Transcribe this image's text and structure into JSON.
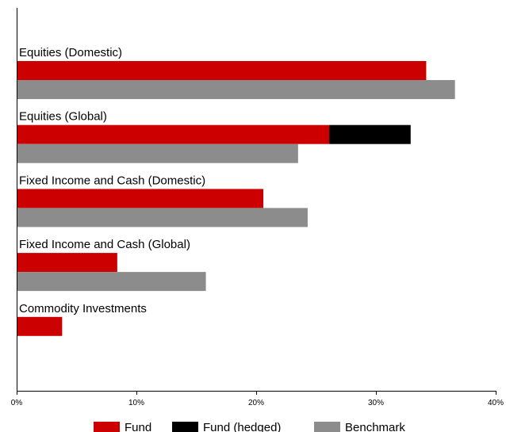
{
  "chart_data": {
    "type": "bar",
    "orientation": "horizontal",
    "stacked": true,
    "title": "",
    "xlabel": "",
    "ylabel": "",
    "xlim": [
      0,
      40
    ],
    "tick_values": [
      0,
      10,
      20,
      30,
      40
    ],
    "tick_labels": [
      "0%",
      "10%",
      "20%",
      "30%",
      "40%"
    ],
    "grid": false,
    "legend_position": "bottom",
    "categories": [
      "Equities (Domestic)",
      "Equities (Global)",
      "Fixed Income and Cash (Domestic)",
      "Fixed Income and Cash (Global)",
      "Commodity Investments"
    ],
    "series": [
      {
        "name": "Fund",
        "color": "#cc0000",
        "group": "fund",
        "values": [
          34.2,
          26.1,
          20.6,
          8.4,
          3.8
        ]
      },
      {
        "name": "Fund (hedged)",
        "color": "#000000",
        "group": "fund",
        "values": [
          0,
          6.8,
          0,
          0,
          0
        ]
      },
      {
        "name": "Benchmark",
        "color": "#8c8c8c",
        "group": "benchmark",
        "values": [
          36.6,
          23.5,
          24.3,
          15.8,
          0
        ]
      }
    ]
  }
}
